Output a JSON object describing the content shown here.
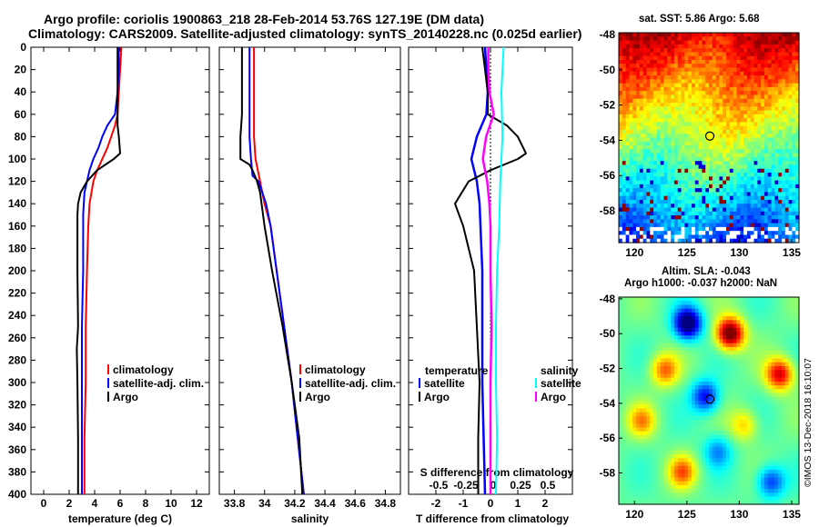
{
  "header": {
    "line1": "Argo profile: coriolis 1900863_218 28-Feb-2014 53.76S 127.19E (DM data)",
    "line2": "Climatology: CARS2009. Satellite-adjusted climatology: synTS_20140228.nc (0.025d earlier)"
  },
  "colors": {
    "climatology": "#ff0000",
    "satellite": "#0000ff",
    "argo": "#000000",
    "sal_satellite": "#00ffff",
    "sal_argo": "#ff00ff"
  },
  "chart_data": [
    {
      "type": "line",
      "name": "temperature-panel",
      "xlabel": "temperature (deg C)",
      "ylabel": "",
      "xlim": [
        -1,
        13
      ],
      "ylim": [
        400,
        0
      ],
      "xticks": [
        "0",
        "2",
        "4",
        "6",
        "8",
        "10",
        "12"
      ],
      "xtick_values": [
        0,
        2,
        4,
        6,
        8,
        10,
        12
      ],
      "yticks": [
        "0",
        "20",
        "40",
        "60",
        "80",
        "100",
        "120",
        "140",
        "160",
        "180",
        "200",
        "220",
        "240",
        "260",
        "280",
        "300",
        "320",
        "340",
        "360",
        "380",
        "400"
      ],
      "legend": [
        "climatology",
        "satellite-adj. clim.",
        "Argo"
      ],
      "legend_position": "lower-right",
      "series": [
        {
          "name": "climatology",
          "depth": [
            0,
            20,
            40,
            60,
            70,
            80,
            90,
            100,
            110,
            120,
            140,
            160,
            200,
            250,
            300,
            350,
            400
          ],
          "values": [
            6.1,
            6.0,
            5.9,
            5.8,
            5.6,
            5.3,
            5.0,
            4.6,
            4.2,
            3.9,
            3.6,
            3.5,
            3.4,
            3.3,
            3.3,
            3.2,
            3.2
          ]
        },
        {
          "name": "satellite-adj. clim.",
          "depth": [
            0,
            20,
            40,
            60,
            70,
            80,
            90,
            100,
            110,
            120,
            130,
            150,
            200,
            250,
            300,
            350,
            400
          ],
          "values": [
            5.9,
            5.9,
            5.8,
            5.6,
            5.0,
            4.6,
            4.3,
            3.9,
            3.6,
            3.4,
            3.2,
            3.1,
            3.1,
            3.0,
            3.0,
            3.0,
            3.0
          ]
        },
        {
          "name": "Argo",
          "depth": [
            0,
            10,
            20,
            60,
            70,
            80,
            95,
            100,
            110,
            120,
            130,
            140,
            150,
            200,
            250,
            270,
            300,
            350,
            400
          ],
          "values": [
            5.8,
            5.8,
            5.8,
            5.8,
            5.8,
            5.9,
            6.0,
            5.5,
            4.2,
            3.4,
            2.9,
            2.7,
            2.65,
            2.65,
            2.7,
            2.6,
            2.65,
            2.7,
            2.7
          ]
        }
      ]
    },
    {
      "type": "line",
      "name": "salinity-panel",
      "xlabel": "salinity",
      "ylabel": "",
      "xlim": [
        33.7,
        34.9
      ],
      "ylim": [
        400,
        0
      ],
      "xticks": [
        "33.8",
        "34",
        "34.2",
        "34.4",
        "34.6",
        "34.8"
      ],
      "xtick_values": [
        33.8,
        34,
        34.2,
        34.4,
        34.6,
        34.8
      ],
      "legend": [
        "climatology",
        "satellite-adj. clim.",
        "Argo"
      ],
      "legend_position": "lower-right",
      "series": [
        {
          "name": "climatology",
          "depth": [
            0,
            20,
            60,
            80,
            100,
            120,
            140,
            160,
            200,
            250,
            300,
            350,
            400
          ],
          "values": [
            33.93,
            33.93,
            33.93,
            33.93,
            33.94,
            33.97,
            34.0,
            34.04,
            34.08,
            34.13,
            34.18,
            34.22,
            34.26
          ]
        },
        {
          "name": "satellite-adj. clim.",
          "depth": [
            0,
            20,
            60,
            80,
            100,
            115,
            120,
            140,
            160,
            200,
            250,
            300,
            350,
            400
          ],
          "values": [
            33.9,
            33.9,
            33.9,
            33.9,
            33.91,
            33.92,
            33.96,
            34.01,
            34.04,
            34.08,
            34.13,
            34.18,
            34.22,
            34.26
          ]
        },
        {
          "name": "Argo",
          "depth": [
            0,
            20,
            60,
            80,
            100,
            105,
            110,
            120,
            130,
            160,
            200,
            250,
            300,
            350,
            400
          ],
          "values": [
            33.85,
            33.85,
            33.85,
            33.84,
            33.84,
            33.9,
            33.92,
            33.95,
            33.97,
            34.0,
            34.05,
            34.12,
            34.18,
            34.23,
            34.25
          ]
        }
      ]
    },
    {
      "type": "line",
      "name": "difference-panel",
      "xlabel": "T difference from climatology",
      "xlabel_top": "S difference from climatology",
      "xlim": [
        -3,
        3
      ],
      "ylim": [
        400,
        0
      ],
      "xticks": [
        "-2",
        "-1",
        "0",
        "1",
        "2"
      ],
      "xtick_values": [
        -2,
        -1,
        0,
        1,
        2
      ],
      "s_xticks": [
        "-0.5",
        "-0.25",
        "0",
        "0.25",
        "0.5"
      ],
      "s_xtick_values": [
        -0.5,
        -0.25,
        0,
        0.25,
        0.5
      ],
      "legend_temperature_title": "temperature",
      "legend_salinity_title": "salinity",
      "legend_temperature": [
        "satellite",
        "Argo"
      ],
      "legend_salinity": [
        "satellite",
        "Argo"
      ],
      "series": [
        {
          "name": "T satellite",
          "depth": [
            0,
            20,
            40,
            60,
            80,
            100,
            120,
            140,
            200,
            300,
            400
          ],
          "values": [
            -0.2,
            -0.15,
            -0.1,
            -0.15,
            -0.5,
            -0.7,
            -0.5,
            -0.4,
            -0.3,
            -0.3,
            -0.2
          ]
        },
        {
          "name": "T Argo",
          "depth": [
            0,
            20,
            40,
            60,
            70,
            80,
            90,
            95,
            100,
            110,
            120,
            140,
            160,
            200,
            250,
            300,
            350,
            400
          ],
          "values": [
            -0.3,
            -0.2,
            -0.1,
            -0.1,
            0.6,
            1.0,
            1.2,
            1.3,
            1.0,
            0.0,
            -0.8,
            -1.3,
            -1.0,
            -0.6,
            -0.5,
            -0.4,
            -0.45,
            -0.45
          ]
        },
        {
          "name": "S satellite",
          "depth": [
            0,
            40,
            80,
            100,
            120,
            160,
            200,
            250,
            300,
            350,
            400
          ],
          "values": [
            0.12,
            0.1,
            0.11,
            0.1,
            0.09,
            0.08,
            0.06,
            0.05,
            0.05,
            0.06,
            0.05
          ]
        },
        {
          "name": "S Argo",
          "depth": [
            0,
            20,
            40,
            60,
            80,
            100,
            120,
            140,
            160,
            200,
            250,
            300,
            350,
            400
          ],
          "values": [
            -0.02,
            -0.02,
            -0.01,
            0.03,
            -0.04,
            -0.07,
            -0.03,
            -0.01,
            0.0,
            0.0,
            0.01,
            0.0,
            0.0,
            0.0
          ]
        }
      ]
    },
    {
      "type": "heatmap",
      "name": "sst-map",
      "title": "sat. SST: 5.86 Argo: 5.68",
      "xticks": [
        "120",
        "125",
        "130",
        "135"
      ],
      "xtick_values": [
        120,
        125,
        130,
        135
      ],
      "yticks": [
        "-48",
        "-50",
        "-52",
        "-54",
        "-56",
        "-58"
      ],
      "ytick_values": [
        -48,
        -50,
        -52,
        -54,
        -56,
        -58
      ],
      "xlim": [
        118.5,
        135.7
      ],
      "ylim": [
        -59.8,
        -47.9
      ],
      "marker": {
        "lon": 127.19,
        "lat": -53.76
      }
    },
    {
      "type": "heatmap",
      "name": "sla-map",
      "title_line1": "Altim. SLA: -0.043",
      "title_line2": "Argo h1000: -0.037 h2000: NaN",
      "xticks": [
        "120",
        "125",
        "130",
        "135"
      ],
      "xtick_values": [
        120,
        125,
        130,
        135
      ],
      "yticks": [
        "-48",
        "-50",
        "-52",
        "-54",
        "-56",
        "-58"
      ],
      "ytick_values": [
        -48,
        -50,
        -52,
        -54,
        -56,
        -58
      ],
      "xlim": [
        118.5,
        135.7
      ],
      "ylim": [
        -59.8,
        -47.9
      ],
      "marker": {
        "lon": 127.19,
        "lat": -53.76
      },
      "watermark": "©IMOS 13-Dec-2018 16:10:07"
    }
  ]
}
